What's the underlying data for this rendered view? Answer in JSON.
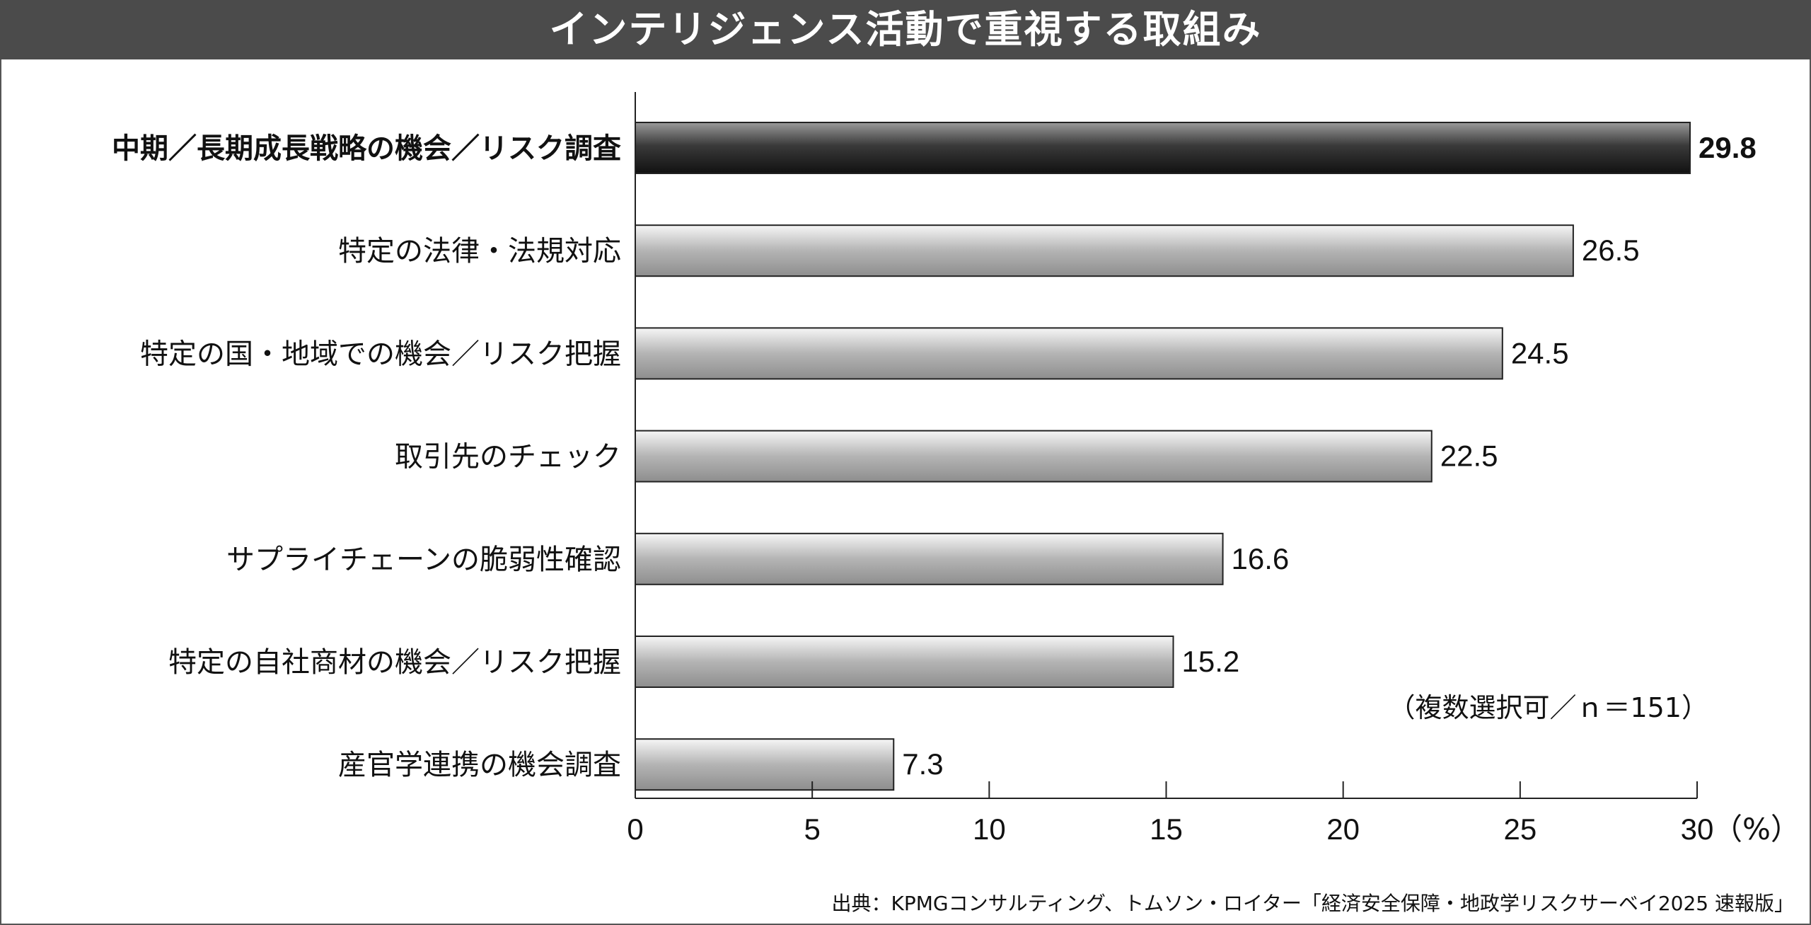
{
  "header": {
    "title": "インテリジェンス活動で重視する取組み"
  },
  "note": "（複数選択可／ｎ＝151）",
  "source": "出典：KPMGコンサルティング、トムソン・ロイター「経済安全保障・地政学リスクサーベイ2025 速報版」",
  "colors": {
    "header_bg": "#4b4b4b",
    "highlight_bar": "#2a2a2a",
    "bar": "#b0b0b0"
  },
  "chart_data": {
    "type": "bar",
    "orientation": "horizontal",
    "categories": [
      "中期／長期成長戦略の機会／リスク調査",
      "特定の法律・法規対応",
      "特定の国・地域での機会／リスク把握",
      "取引先のチェック",
      "サプライチェーンの脆弱性確認",
      "特定の自社商材の機会／リスク把握",
      "産官学連携の機会調査"
    ],
    "values": [
      29.8,
      26.5,
      24.5,
      22.5,
      16.6,
      15.2,
      7.3
    ],
    "value_labels": [
      "29.8",
      "26.5",
      "24.5",
      "22.5",
      "16.6",
      "15.2",
      "7.3"
    ],
    "highlight_index": 0,
    "xlim": [
      0,
      30
    ],
    "xticks": [
      0,
      5,
      10,
      15,
      20,
      25,
      30
    ],
    "xtick_labels": [
      "0",
      "5",
      "10",
      "15",
      "20",
      "25",
      "30"
    ],
    "unit_label": "（%）",
    "grid": false
  }
}
